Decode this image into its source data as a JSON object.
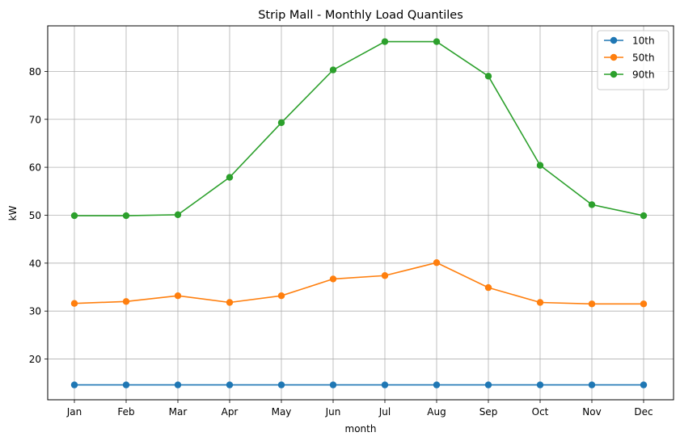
{
  "chart_data": {
    "type": "line",
    "title": "Strip Mall - Monthly Load Quantiles",
    "xlabel": "month",
    "ylabel": "kW",
    "categories": [
      "Jan",
      "Feb",
      "Mar",
      "Apr",
      "May",
      "Jun",
      "Jul",
      "Aug",
      "Sep",
      "Oct",
      "Nov",
      "Dec"
    ],
    "ylim": [
      11.5,
      89.5
    ],
    "yticks": [
      20,
      30,
      40,
      50,
      60,
      70,
      80
    ],
    "grid": true,
    "legend_position": "top-right",
    "markers": "circle",
    "series": [
      {
        "name": "10th",
        "color": "#1f77b4",
        "values": [
          14.6,
          14.6,
          14.6,
          14.6,
          14.6,
          14.6,
          14.6,
          14.6,
          14.6,
          14.6,
          14.6,
          14.6
        ]
      },
      {
        "name": "50th",
        "color": "#ff7f0e",
        "values": [
          31.6,
          32.0,
          33.2,
          31.8,
          33.2,
          36.7,
          37.4,
          40.1,
          34.9,
          31.8,
          31.5,
          31.5
        ]
      },
      {
        "name": "90th",
        "color": "#2ca02c",
        "values": [
          49.9,
          49.9,
          50.1,
          57.9,
          69.3,
          80.3,
          86.2,
          86.2,
          79.0,
          60.4,
          52.2,
          49.9
        ]
      }
    ]
  }
}
